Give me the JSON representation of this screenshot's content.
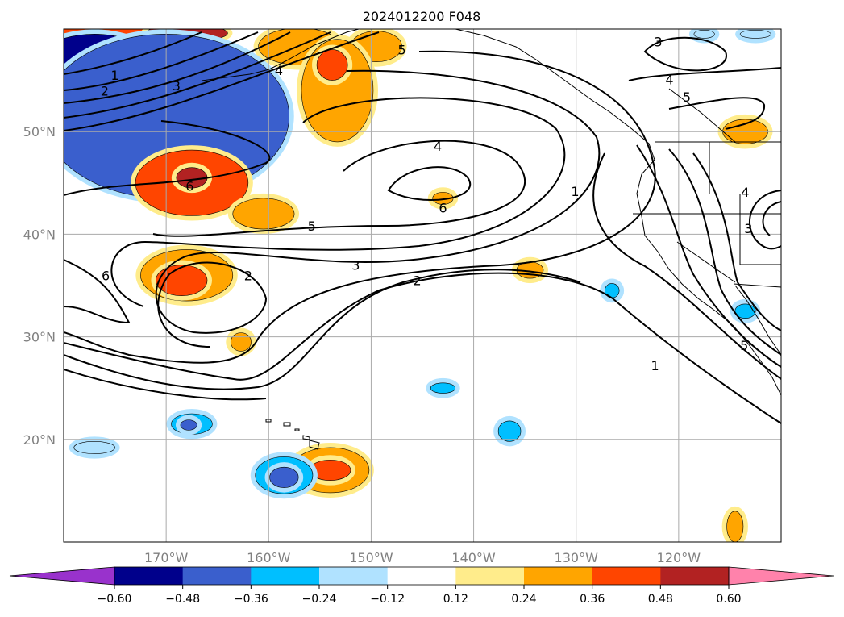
{
  "title": "2024012200 F048",
  "map": {
    "lon_range": [
      -180,
      -110
    ],
    "lat_range": [
      10,
      60
    ],
    "lon_ticks": [
      {
        "value": -170,
        "label": "170°W"
      },
      {
        "value": -160,
        "label": "160°W"
      },
      {
        "value": -150,
        "label": "150°W"
      },
      {
        "value": -140,
        "label": "140°W"
      },
      {
        "value": -130,
        "label": "130°W"
      },
      {
        "value": -120,
        "label": "120°W"
      }
    ],
    "lat_ticks": [
      {
        "value": 20,
        "label": "20°N"
      },
      {
        "value": 30,
        "label": "30°N"
      },
      {
        "value": 40,
        "label": "40°N"
      },
      {
        "value": 50,
        "label": "50°N"
      }
    ],
    "grid": true,
    "contour_labels": [
      {
        "text": "1",
        "lon": -175,
        "lat": 55.5
      },
      {
        "text": "2",
        "lon": -176,
        "lat": 54
      },
      {
        "text": "3",
        "lon": -169,
        "lat": 54.5
      },
      {
        "text": "4",
        "lon": -159,
        "lat": 56
      },
      {
        "text": "5",
        "lon": -147,
        "lat": 58
      },
      {
        "text": "4",
        "lon": -143.5,
        "lat": 48.6
      },
      {
        "text": "6",
        "lon": -167.7,
        "lat": 44.7
      },
      {
        "text": "6",
        "lon": -143,
        "lat": 42.6
      },
      {
        "text": "5",
        "lon": -155.8,
        "lat": 40.8
      },
      {
        "text": "3",
        "lon": -151.5,
        "lat": 37
      },
      {
        "text": "2",
        "lon": -162,
        "lat": 36
      },
      {
        "text": "2",
        "lon": -145.5,
        "lat": 35.5
      },
      {
        "text": "6",
        "lon": -175.9,
        "lat": 36
      },
      {
        "text": "1",
        "lon": -130.1,
        "lat": 44.2
      },
      {
        "text": "1",
        "lon": -122.3,
        "lat": 27.2
      },
      {
        "text": "3",
        "lon": -122,
        "lat": 58.8
      },
      {
        "text": "4",
        "lon": -120.9,
        "lat": 55.1
      },
      {
        "text": "5",
        "lon": -119.2,
        "lat": 53.4
      },
      {
        "text": "4",
        "lon": -113.5,
        "lat": 44.1
      },
      {
        "text": "3",
        "lon": -113.2,
        "lat": 40.6
      },
      {
        "text": "5",
        "lon": -113.6,
        "lat": 29.2
      }
    ],
    "anomalies": [
      {
        "lon": -178,
        "lat": 59.6,
        "rx": 9,
        "ry": 1.5,
        "value": 0.4
      },
      {
        "lon": -168,
        "lat": 59.6,
        "rx": 4,
        "ry": 0.8,
        "value": 0.52
      },
      {
        "lon": -157,
        "lat": 58.3,
        "rx": 4,
        "ry": 1.8,
        "value": 0.35
      },
      {
        "lon": -149.5,
        "lat": 58.3,
        "rx": 2.5,
        "ry": 1.5,
        "value": 0.3
      },
      {
        "lon": -153.3,
        "lat": 54,
        "rx": 3.5,
        "ry": 5,
        "value": 0.3
      },
      {
        "lon": -153.8,
        "lat": 56.5,
        "rx": 1.5,
        "ry": 1.5,
        "value": 0.4
      },
      {
        "lon": -177,
        "lat": 53,
        "rx": 8.5,
        "ry": 6.5,
        "value": -0.6
      },
      {
        "lon": -170,
        "lat": 51.5,
        "rx": 12,
        "ry": 8,
        "value": -0.4
      },
      {
        "lon": -167.5,
        "lat": 45,
        "rx": 5.5,
        "ry": 3.2,
        "value": 0.42
      },
      {
        "lon": -167.5,
        "lat": 45.5,
        "rx": 1.5,
        "ry": 1,
        "value": 0.52
      },
      {
        "lon": -160.5,
        "lat": 42,
        "rx": 3,
        "ry": 1.5,
        "value": 0.3
      },
      {
        "lon": -168,
        "lat": 36,
        "rx": 4.5,
        "ry": 2.5,
        "value": 0.3
      },
      {
        "lon": -168.5,
        "lat": 35.5,
        "rx": 2.5,
        "ry": 1.5,
        "value": 0.4
      },
      {
        "lon": -143,
        "lat": 43.5,
        "rx": 1,
        "ry": 0.6,
        "value": 0.3
      },
      {
        "lon": -134.5,
        "lat": 36.5,
        "rx": 1.3,
        "ry": 0.8,
        "value": 0.3
      },
      {
        "lon": -162.7,
        "lat": 29.5,
        "rx": 1,
        "ry": 0.9,
        "value": 0.3
      },
      {
        "lon": -154,
        "lat": 17,
        "rx": 3.8,
        "ry": 2.2,
        "value": 0.35
      },
      {
        "lon": -154,
        "lat": 17,
        "rx": 2,
        "ry": 1,
        "value": 0.45
      },
      {
        "lon": -114.5,
        "lat": 11.5,
        "rx": 0.8,
        "ry": 1.5,
        "value": 0.3
      },
      {
        "lon": -113.5,
        "lat": 50,
        "rx": 2.2,
        "ry": 1.2,
        "value": 0.35
      },
      {
        "lon": -167.5,
        "lat": 21.5,
        "rx": 2,
        "ry": 1,
        "value": -0.25
      },
      {
        "lon": -167.8,
        "lat": 21.4,
        "rx": 0.8,
        "ry": 0.5,
        "value": -0.4
      },
      {
        "lon": -177,
        "lat": 19.2,
        "rx": 2,
        "ry": 0.6,
        "value": -0.2
      },
      {
        "lon": -158.5,
        "lat": 16.5,
        "rx": 2.8,
        "ry": 1.8,
        "value": -0.3
      },
      {
        "lon": -158.5,
        "lat": 16.3,
        "rx": 1.4,
        "ry": 1,
        "value": -0.42
      },
      {
        "lon": -143,
        "lat": 25,
        "rx": 1.2,
        "ry": 0.5,
        "value": -0.25
      },
      {
        "lon": -136.5,
        "lat": 20.8,
        "rx": 1.1,
        "ry": 1,
        "value": -0.25
      },
      {
        "lon": -126.5,
        "lat": 34.5,
        "rx": 0.7,
        "ry": 0.7,
        "value": -0.25
      },
      {
        "lon": -113.5,
        "lat": 32.5,
        "rx": 1,
        "ry": 0.7,
        "value": -0.25
      },
      {
        "lon": -117.5,
        "lat": 59.5,
        "rx": 1,
        "ry": 0.4,
        "value": -0.2
      },
      {
        "lon": -112.5,
        "lat": 59.5,
        "rx": 1.5,
        "ry": 0.4,
        "value": -0.2
      }
    ]
  },
  "colorbar": {
    "ticks": [
      "−0.60",
      "−0.48",
      "−0.36",
      "−0.24",
      "−0.12",
      "0.12",
      "0.24",
      "0.36",
      "0.48",
      "0.60"
    ],
    "colors": [
      "#9932cc",
      "#00008b",
      "#3a5fcd",
      "#00bfff",
      "#b0e2ff",
      "#ffffff",
      "#ffec8b",
      "#ffa500",
      "#ff4500",
      "#b22222",
      "#ff82ab"
    ]
  }
}
